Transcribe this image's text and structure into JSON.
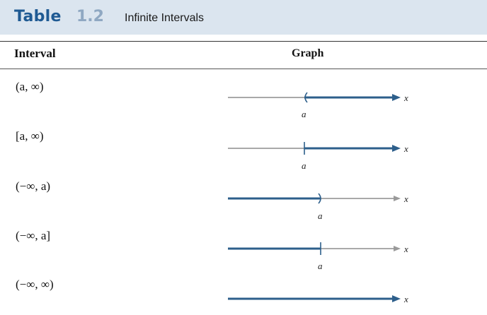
{
  "table": {
    "label": "Table",
    "number": "1.2",
    "title": "Infinite Intervals"
  },
  "headers": {
    "interval": "Interval",
    "graph": "Graph"
  },
  "rows": [
    {
      "interval": "(a, ∞)",
      "x_label": "x",
      "a_label": "a"
    },
    {
      "interval": "[a, ∞)",
      "x_label": "x",
      "a_label": "a"
    },
    {
      "interval": "(−∞, a)",
      "x_label": "x",
      "a_label": "a"
    },
    {
      "interval": "(−∞, a]",
      "x_label": "x",
      "a_label": "a"
    },
    {
      "interval": "(−∞, ∞)",
      "x_label": "x"
    }
  ],
  "colors": {
    "title_bar": "#dbe5ef",
    "title_accent": "#1f5a93",
    "line_highlight": "#2d5f8b",
    "line_base": "#a9a9a9"
  }
}
